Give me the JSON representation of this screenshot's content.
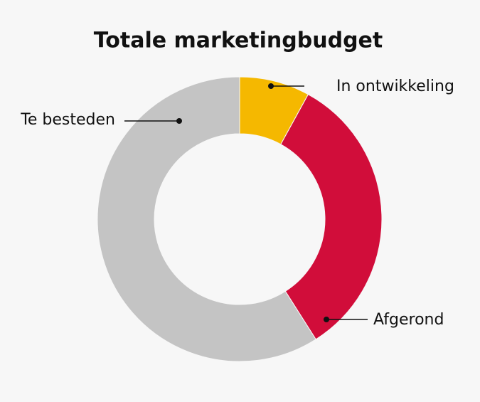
{
  "chart_data": {
    "type": "pie",
    "title": "Totale marketingbudget",
    "categories": [
      "In ontwikkeling",
      "Afgerond",
      "Te besteden"
    ],
    "values": [
      8,
      33,
      59
    ],
    "colors": [
      "#f5b800",
      "#d10d3a",
      "#c4c4c4"
    ],
    "donut": true
  }
}
